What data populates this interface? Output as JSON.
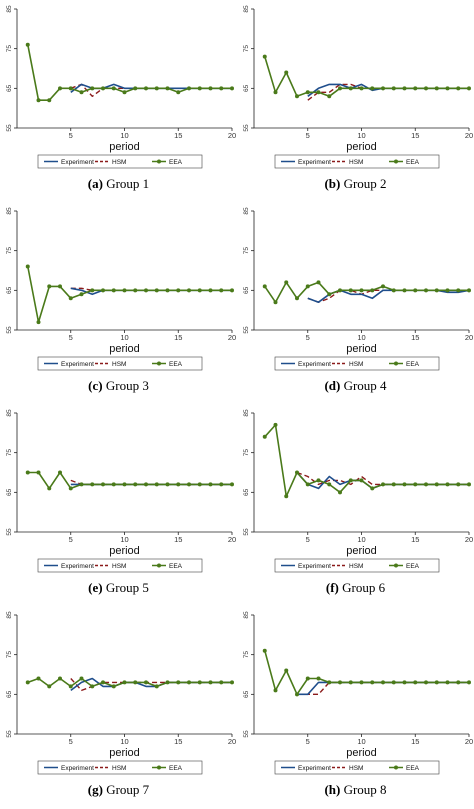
{
  "colors": {
    "experiment": "#1f4e8c",
    "hsm": "#8b1a1a",
    "eea": "#4a7a1a"
  },
  "shared": {
    "xlabel": "period",
    "xticks": [
      "5",
      "10",
      "15",
      "20"
    ],
    "yticks": [
      "55",
      "65",
      "75",
      "85"
    ],
    "legend": [
      "Experiment",
      "HSM",
      "EEA"
    ]
  },
  "chart_data": [
    {
      "type": "line",
      "letter": "(a)",
      "caption": "Group 1",
      "xlabel": "period",
      "xlim": [
        0,
        20
      ],
      "ylim": [
        55,
        85
      ],
      "x": [
        1,
        2,
        3,
        4,
        5,
        6,
        7,
        8,
        9,
        10,
        11,
        12,
        13,
        14,
        15,
        16,
        17,
        18,
        19,
        20
      ],
      "series": [
        {
          "name": "Experiment",
          "values": [
            null,
            null,
            null,
            null,
            64,
            66,
            65,
            65,
            66,
            65,
            65,
            65,
            65,
            65,
            65,
            65,
            65,
            65,
            65,
            65
          ]
        },
        {
          "name": "HSM",
          "values": [
            null,
            null,
            null,
            null,
            65,
            66,
            63,
            65,
            65,
            65,
            65,
            65,
            65,
            65,
            65,
            65,
            65,
            65,
            65,
            65
          ]
        },
        {
          "name": "EEA",
          "values": [
            76,
            62,
            62,
            65,
            65,
            64,
            65,
            65,
            65,
            64,
            65,
            65,
            65,
            65,
            64,
            65,
            65,
            65,
            65,
            65
          ]
        }
      ]
    },
    {
      "type": "line",
      "letter": "(b)",
      "caption": "Group 2",
      "xlabel": "period",
      "xlim": [
        0,
        20
      ],
      "ylim": [
        55,
        85
      ],
      "x": [
        1,
        2,
        3,
        4,
        5,
        6,
        7,
        8,
        9,
        10,
        11,
        12,
        13,
        14,
        15,
        16,
        17,
        18,
        19,
        20
      ],
      "series": [
        {
          "name": "Experiment",
          "values": [
            null,
            null,
            null,
            null,
            63,
            65,
            66,
            66,
            65,
            66,
            64.5,
            65,
            65,
            65,
            65,
            65,
            65,
            65,
            65,
            65
          ]
        },
        {
          "name": "HSM",
          "values": [
            null,
            null,
            null,
            null,
            62,
            64,
            64,
            66,
            66,
            65,
            65,
            65,
            65,
            65,
            65,
            65,
            65,
            65,
            65,
            65
          ]
        },
        {
          "name": "EEA",
          "values": [
            73,
            64,
            69,
            63,
            64,
            64,
            63,
            65,
            65,
            65,
            65,
            65,
            65,
            65,
            65,
            65,
            65,
            65,
            65,
            65
          ]
        }
      ]
    },
    {
      "type": "line",
      "letter": "(c)",
      "caption": "Group 3",
      "xlabel": "period",
      "xlim": [
        0,
        20
      ],
      "ylim": [
        55,
        85
      ],
      "x": [
        1,
        2,
        3,
        4,
        5,
        6,
        7,
        8,
        9,
        10,
        11,
        12,
        13,
        14,
        15,
        16,
        17,
        18,
        19,
        20
      ],
      "series": [
        {
          "name": "Experiment",
          "values": [
            null,
            null,
            null,
            null,
            65.5,
            65,
            64,
            65,
            65,
            65,
            65,
            65,
            65,
            65,
            65,
            65,
            65,
            65,
            65,
            65
          ]
        },
        {
          "name": "HSM",
          "values": [
            null,
            null,
            null,
            null,
            65.5,
            65.5,
            65,
            65,
            65,
            65,
            65,
            65,
            65,
            65,
            65,
            65,
            65,
            65,
            65,
            65
          ]
        },
        {
          "name": "EEA",
          "values": [
            71,
            57,
            66,
            66,
            63,
            64,
            65,
            65,
            65,
            65,
            65,
            65,
            65,
            65,
            65,
            65,
            65,
            65,
            65,
            65
          ]
        }
      ]
    },
    {
      "type": "line",
      "letter": "(d)",
      "caption": "Group 4",
      "xlabel": "period",
      "xlim": [
        0,
        20
      ],
      "ylim": [
        55,
        85
      ],
      "x": [
        1,
        2,
        3,
        4,
        5,
        6,
        7,
        8,
        9,
        10,
        11,
        12,
        13,
        14,
        15,
        16,
        17,
        18,
        19,
        20
      ],
      "series": [
        {
          "name": "Experiment",
          "values": [
            null,
            null,
            null,
            null,
            63,
            62,
            64,
            65,
            64,
            64,
            63,
            65,
            65,
            65,
            65,
            65,
            65,
            64.5,
            64.5,
            65
          ]
        },
        {
          "name": "HSM",
          "values": [
            null,
            null,
            null,
            null,
            63,
            62,
            63,
            65,
            65,
            64,
            65,
            65,
            65,
            65,
            65,
            65,
            65,
            65,
            65,
            65
          ]
        },
        {
          "name": "EEA",
          "values": [
            66,
            62,
            67,
            63,
            66,
            67,
            64,
            65,
            65,
            65,
            65,
            66,
            65,
            65,
            65,
            65,
            65,
            65,
            65,
            65
          ]
        }
      ]
    },
    {
      "type": "line",
      "letter": "(e)",
      "caption": "Group 5",
      "xlabel": "period",
      "xlim": [
        0,
        20
      ],
      "ylim": [
        55,
        85
      ],
      "x": [
        1,
        2,
        3,
        4,
        5,
        6,
        7,
        8,
        9,
        10,
        11,
        12,
        13,
        14,
        15,
        16,
        17,
        18,
        19,
        20
      ],
      "series": [
        {
          "name": "Experiment",
          "values": [
            null,
            null,
            null,
            null,
            67,
            67,
            67,
            67,
            67,
            67,
            67,
            67,
            67,
            67,
            67,
            67,
            67,
            67,
            67,
            67
          ]
        },
        {
          "name": "HSM",
          "values": [
            null,
            null,
            null,
            null,
            68,
            67,
            67,
            67,
            67,
            67,
            67,
            67,
            67,
            67,
            67,
            67,
            67,
            67,
            67,
            67
          ]
        },
        {
          "name": "EEA",
          "values": [
            70,
            70,
            66,
            70,
            66,
            67,
            67,
            67,
            67,
            67,
            67,
            67,
            67,
            67,
            67,
            67,
            67,
            67,
            67,
            67
          ]
        }
      ]
    },
    {
      "type": "line",
      "letter": "(f)",
      "caption": "Group 6",
      "xlabel": "period",
      "xlim": [
        0,
        20
      ],
      "ylim": [
        55,
        85
      ],
      "x": [
        1,
        2,
        3,
        4,
        5,
        6,
        7,
        8,
        9,
        10,
        11,
        12,
        13,
        14,
        15,
        16,
        17,
        18,
        19,
        20
      ],
      "series": [
        {
          "name": "Experiment",
          "values": [
            null,
            null,
            null,
            70,
            67,
            66,
            69,
            67,
            68,
            68,
            66,
            67,
            67,
            67,
            67,
            67,
            67,
            67,
            67,
            67
          ]
        },
        {
          "name": "HSM",
          "values": [
            null,
            null,
            null,
            70,
            69,
            67,
            68,
            68,
            67,
            69,
            67,
            67,
            67,
            67,
            67,
            67,
            67,
            67,
            67,
            67
          ]
        },
        {
          "name": "EEA",
          "values": [
            79,
            82,
            64,
            70,
            67,
            68,
            67,
            65,
            68,
            68,
            66,
            67,
            67,
            67,
            67,
            67,
            67,
            67,
            67,
            67
          ]
        }
      ]
    },
    {
      "type": "line",
      "letter": "(g)",
      "caption": "Group 7",
      "xlabel": "period",
      "xlim": [
        0,
        20
      ],
      "ylim": [
        55,
        85
      ],
      "x": [
        1,
        2,
        3,
        4,
        5,
        6,
        7,
        8,
        9,
        10,
        11,
        12,
        13,
        14,
        15,
        16,
        17,
        18,
        19,
        20
      ],
      "series": [
        {
          "name": "Experiment",
          "values": [
            null,
            null,
            null,
            null,
            66,
            68,
            69,
            67,
            67,
            68,
            68,
            67,
            67,
            68,
            68,
            68,
            68,
            68,
            68,
            68
          ]
        },
        {
          "name": "HSM",
          "values": [
            null,
            null,
            null,
            null,
            69,
            66,
            67,
            68,
            68,
            68,
            68,
            68,
            68,
            68,
            68,
            68,
            68,
            68,
            68,
            68
          ]
        },
        {
          "name": "EEA",
          "values": [
            68,
            69,
            67,
            69,
            67,
            69,
            67,
            68,
            67,
            68,
            68,
            68,
            67,
            68,
            68,
            68,
            68,
            68,
            68,
            68
          ]
        }
      ]
    },
    {
      "type": "line",
      "letter": "(h)",
      "caption": "Group 8",
      "xlabel": "period",
      "xlim": [
        0,
        20
      ],
      "ylim": [
        55,
        85
      ],
      "x": [
        1,
        2,
        3,
        4,
        5,
        6,
        7,
        8,
        9,
        10,
        11,
        12,
        13,
        14,
        15,
        16,
        17,
        18,
        19,
        20
      ],
      "series": [
        {
          "name": "Experiment",
          "values": [
            null,
            null,
            null,
            65,
            65,
            68,
            68,
            68,
            68,
            68,
            68,
            68,
            68,
            68,
            68,
            68,
            68,
            68,
            68,
            68
          ]
        },
        {
          "name": "HSM",
          "values": [
            null,
            null,
            null,
            65,
            65,
            65,
            68,
            68,
            68,
            68,
            68,
            68,
            68,
            68,
            68,
            68,
            68,
            68,
            68,
            68
          ]
        },
        {
          "name": "EEA",
          "values": [
            76,
            66,
            71,
            65,
            69,
            69,
            68,
            68,
            68,
            68,
            68,
            68,
            68,
            68,
            68,
            68,
            68,
            68,
            68,
            68
          ]
        }
      ]
    }
  ]
}
